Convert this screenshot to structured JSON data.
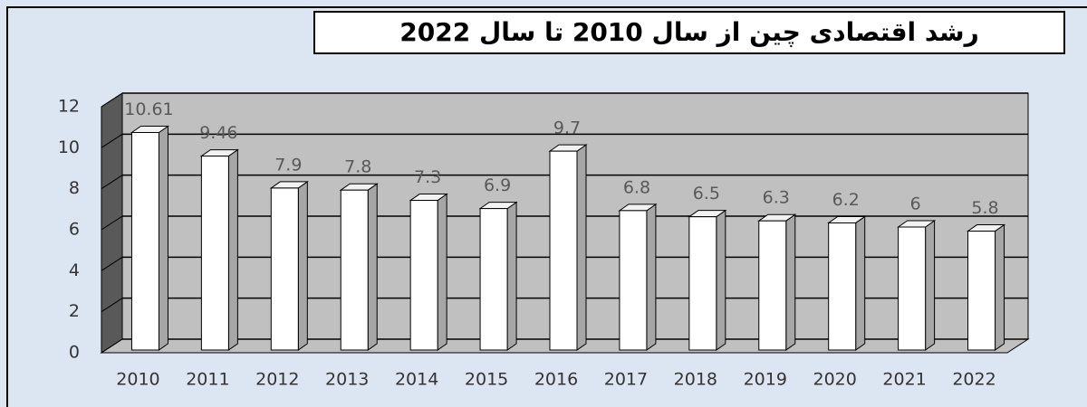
{
  "chart_data": {
    "type": "bar",
    "title": "رشد اقتصادی چین از سال 2010 تا سال 2022",
    "categories": [
      "2010",
      "2011",
      "2012",
      "2013",
      "2014",
      "2015",
      "2016",
      "2017",
      "2018",
      "2019",
      "2020",
      "2021",
      "2022"
    ],
    "values": [
      10.61,
      9.46,
      7.9,
      7.8,
      7.3,
      6.9,
      9.7,
      6.8,
      6.5,
      6.3,
      6.2,
      6,
      5.8
    ],
    "color": "#ffffff",
    "ylim": [
      0,
      12
    ],
    "yticks": [
      0,
      2,
      4,
      6,
      8,
      10,
      12
    ],
    "grid": true
  }
}
